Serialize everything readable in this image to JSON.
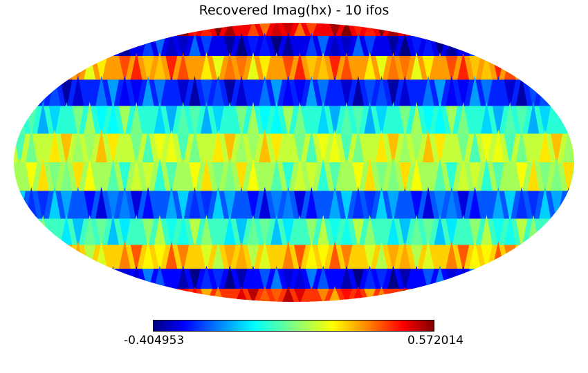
{
  "title": "Recovered Imag(hx) - 10 ifos",
  "chart_data": {
    "type": "heatmap",
    "title": "Recovered Imag(hx) - 10 ifos",
    "projection": "mollweide",
    "colormap": "jet",
    "colorbar": {
      "min": -0.404953,
      "max": 0.572014,
      "min_label": "-0.404953",
      "max_label": "0.572014",
      "orientation": "horizontal",
      "placement": "bottom"
    },
    "latitude_bands": [
      {
        "lat_range": [
          75,
          90
        ],
        "value": 0.46,
        "description": "top cap: orange/dark red/yellow"
      },
      {
        "lat_range": [
          60,
          75
        ],
        "value": -0.3,
        "description": "dark blue band"
      },
      {
        "lat_range": [
          45,
          60
        ],
        "value": 0.3,
        "description": "orange/yellow zigzag"
      },
      {
        "lat_range": [
          30,
          45
        ],
        "value": -0.25,
        "description": "blue band"
      },
      {
        "lat_range": [
          15,
          30
        ],
        "value": 0.0,
        "description": "cyan band"
      },
      {
        "lat_range": [
          0,
          15
        ],
        "value": 0.15,
        "description": "light green/yellow equatorial band"
      },
      {
        "lat_range": [
          -15,
          0
        ],
        "value": 0.12,
        "description": "green/yellow equatorial band"
      },
      {
        "lat_range": [
          -30,
          -15
        ],
        "value": -0.2,
        "description": "blue band"
      },
      {
        "lat_range": [
          -45,
          -30
        ],
        "value": 0.02,
        "description": "cyan/green band"
      },
      {
        "lat_range": [
          -60,
          -45
        ],
        "value": 0.25,
        "description": "yellow/orange band"
      },
      {
        "lat_range": [
          -75,
          -60
        ],
        "value": -0.28,
        "description": "dark blue band"
      },
      {
        "lat_range": [
          -90,
          -75
        ],
        "value": 0.4,
        "description": "bottom cap: red/yellow"
      }
    ]
  }
}
